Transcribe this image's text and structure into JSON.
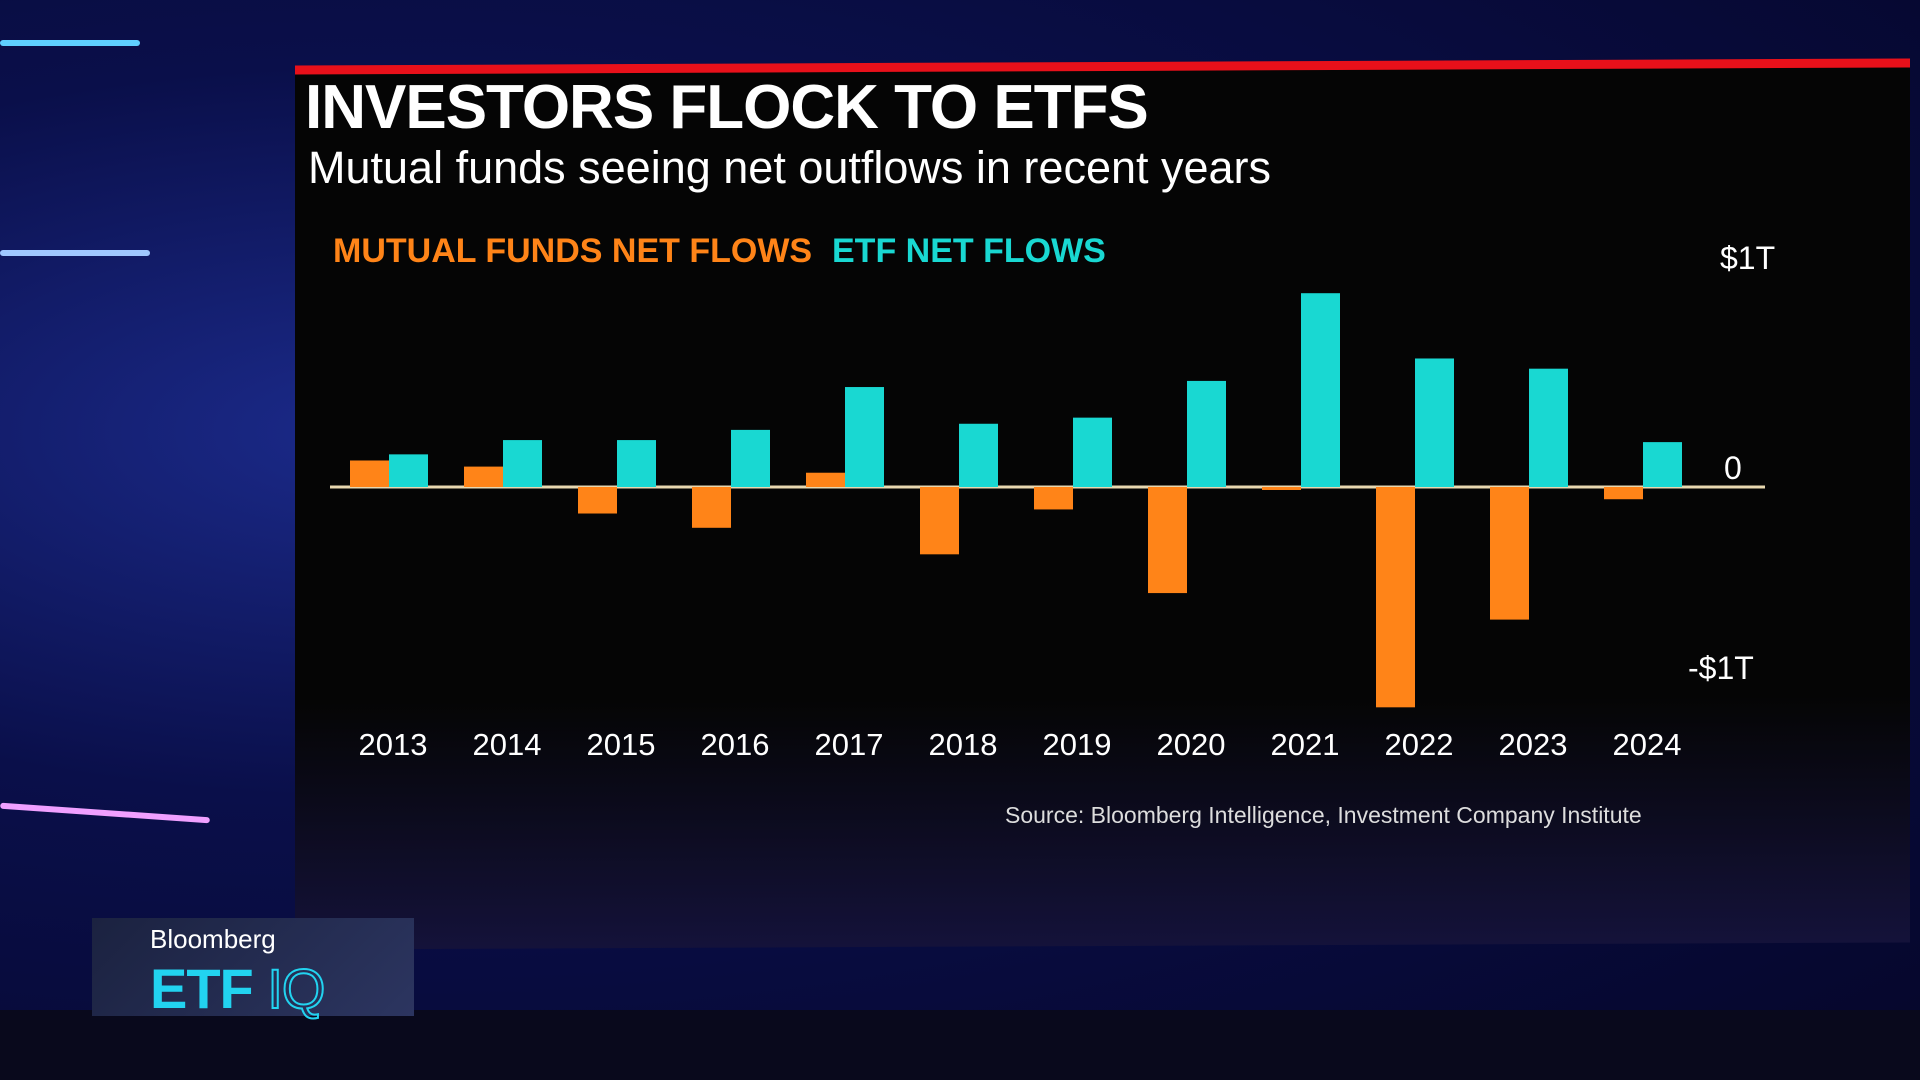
{
  "header": {
    "title": "INVESTORS FLOCK TO ETFS",
    "subtitle": "Mutual funds seeing net outflows in recent years"
  },
  "source": "Source: Bloomberg Intelligence, Investment Company Institute",
  "logo": {
    "brand": "Bloomberg",
    "show_etf": "ETF",
    "show_iq": "IQ"
  },
  "colors": {
    "mutual_funds": "#ff8418",
    "etf": "#19d8d2",
    "title_rule": "#e8101a"
  },
  "chart_data": {
    "type": "bar",
    "title": "INVESTORS FLOCK TO ETFS",
    "subtitle": "Mutual funds seeing net outflows in recent years",
    "categories": [
      "2013",
      "2014",
      "2015",
      "2016",
      "2017",
      "2018",
      "2019",
      "2020",
      "2021",
      "2022",
      "2023",
      "2024"
    ],
    "series": [
      {
        "name": "MUTUAL FUNDS NET FLOWS",
        "color": "#ff8418",
        "values": [
          0.13,
          0.1,
          -0.13,
          -0.2,
          0.07,
          -0.33,
          -0.11,
          -0.52,
          -0.01,
          -1.08,
          -0.65,
          -0.06
        ]
      },
      {
        "name": "ETF NET FLOWS",
        "color": "#19d8d2",
        "values": [
          0.16,
          0.23,
          0.23,
          0.28,
          0.49,
          0.31,
          0.34,
          0.52,
          0.95,
          0.63,
          0.58,
          0.22
        ]
      }
    ],
    "units": "USD trillions",
    "ylim": [
      -1.1,
      1.0
    ],
    "yticks": [
      {
        "value": 1,
        "label": "$1T"
      },
      {
        "value": 0,
        "label": "0"
      },
      {
        "value": -1,
        "label": "-$1T"
      }
    ],
    "legend": "top-left",
    "grid": false
  }
}
